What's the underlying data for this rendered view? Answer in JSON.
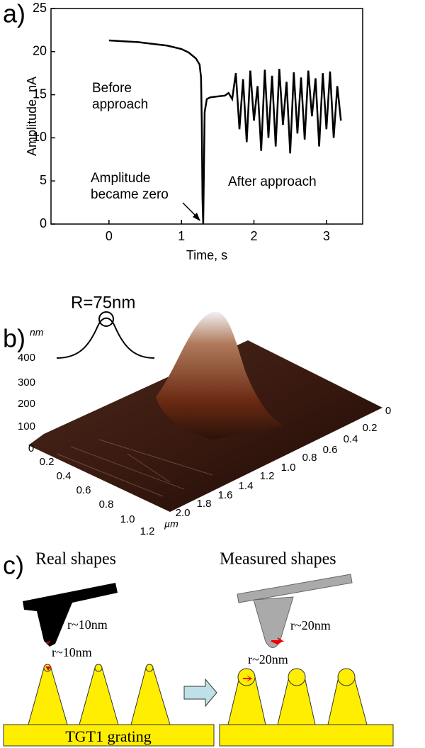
{
  "panel_labels": [
    "a)",
    "b)",
    "c)"
  ],
  "chart_data": {
    "type": "line",
    "xlabel": "Time, s",
    "ylabel": "Amplitude, nA",
    "xlim": [
      -0.8,
      3.5
    ],
    "ylim": [
      0,
      25
    ],
    "xticks": [
      0,
      1,
      2,
      3
    ],
    "yticks": [
      0,
      5,
      10,
      15,
      20,
      25
    ],
    "color": "#000000",
    "annotations": [
      "Before",
      "approach",
      "Amplitude",
      "became zero",
      "After approach"
    ],
    "x": [
      0,
      0.2,
      0.4,
      0.6,
      0.8,
      1.0,
      1.1,
      1.2,
      1.25,
      1.27,
      1.28,
      1.29,
      1.3,
      1.32,
      1.35,
      1.4,
      1.5,
      1.6,
      1.65,
      1.7,
      1.75,
      1.8,
      1.85,
      1.9,
      1.95,
      2.0,
      2.05,
      2.1,
      2.15,
      2.2,
      2.25,
      2.3,
      2.35,
      2.4,
      2.45,
      2.5,
      2.55,
      2.6,
      2.65,
      2.7,
      2.75,
      2.8,
      2.85,
      2.9,
      2.95,
      3.0,
      3.05,
      3.1,
      3.15,
      3.2
    ],
    "values": [
      21.3,
      21.2,
      21.1,
      20.9,
      20.7,
      20.3,
      19.9,
      19.2,
      18.5,
      17,
      12,
      3,
      0,
      13,
      14.5,
      14.7,
      14.8,
      14.9,
      15.2,
      14.5,
      17.5,
      11,
      16.8,
      9.5,
      17.8,
      12,
      16,
      8.5,
      17.9,
      10,
      17.2,
      9,
      18,
      11.5,
      16.5,
      8.2,
      17.6,
      10.5,
      17,
      9.8,
      17.8,
      12.5,
      16.9,
      9,
      17.5,
      11,
      17.7,
      10,
      16,
      12
    ]
  },
  "surface_plot": {
    "inset_label": "R=75nm",
    "z_unit": "nm",
    "z_ticks": [
      "100",
      "200",
      "300",
      "400"
    ],
    "left_axis_ticks": [
      "0",
      "0.2",
      "0.4",
      "0.6",
      "0.8",
      "1.0",
      "1.2"
    ],
    "right_axis_ticks": [
      "0",
      "0.2",
      "0.4",
      "0.6",
      "0.8",
      "1.0",
      "1.2",
      "1.4",
      "1.6",
      "1.8",
      "2.0"
    ],
    "unit": "µm"
  },
  "diagram": {
    "left_title": "Real shapes",
    "right_title": "Measured shapes",
    "left_tip_radius": "r~10nm",
    "left_grating_radius": "r~10nm",
    "right_tip_radius": "r~20nm",
    "right_grating_radius": "r~20nm",
    "grating_label": "TGT1 grating"
  }
}
